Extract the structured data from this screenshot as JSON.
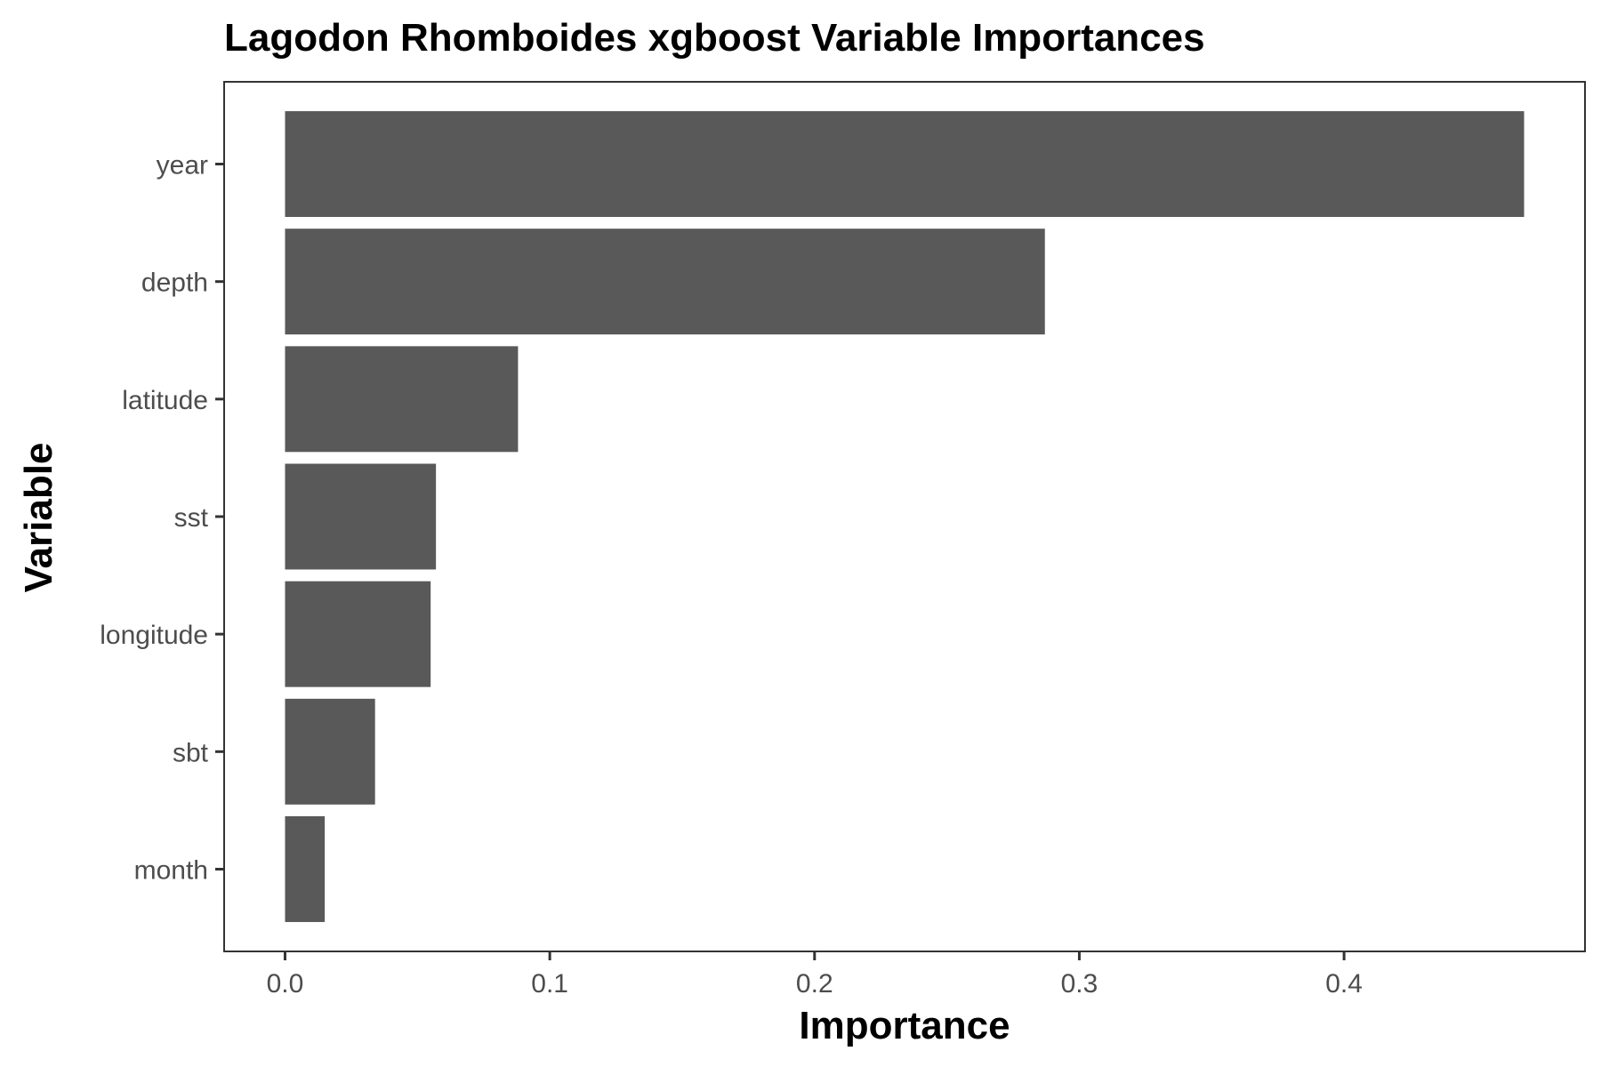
{
  "chart_data": {
    "type": "bar",
    "orientation": "horizontal",
    "title": "Lagodon Rhomboides xgboost Variable Importances",
    "xlabel": "Importance",
    "ylabel": "Variable",
    "categories": [
      "year",
      "depth",
      "latitude",
      "sst",
      "longitude",
      "sbt",
      "month"
    ],
    "values": [
      0.468,
      0.287,
      0.088,
      0.057,
      0.055,
      0.034,
      0.015
    ],
    "xlim": [
      -0.023,
      0.491
    ],
    "xticks": [
      0.0,
      0.1,
      0.2,
      0.3,
      0.4
    ],
    "xtick_labels": [
      "0.0",
      "0.1",
      "0.2",
      "0.3",
      "0.4"
    ],
    "grid": false,
    "legend": "none",
    "colors": {
      "bar": "#595959",
      "panel_border": "#333333",
      "tick": "#333333"
    }
  }
}
